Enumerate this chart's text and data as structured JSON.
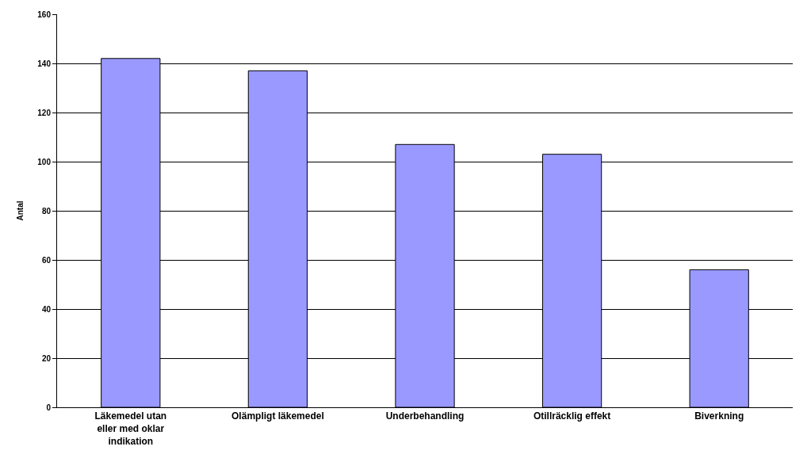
{
  "chart_data": {
    "type": "bar",
    "ylabel": "Antal",
    "categories": [
      "Läkemedel utan eller med oklar indikation",
      "Olämpligt läkemedel",
      "Underbehandling",
      "Otillräcklig effekt",
      "Biverkning"
    ],
    "values": [
      142,
      137,
      107,
      103,
      56
    ],
    "color": "#9999ff",
    "ylim": [
      0,
      160
    ],
    "yticks": [
      0,
      20,
      40,
      60,
      80,
      100,
      120,
      140,
      160
    ],
    "grid": "y"
  }
}
